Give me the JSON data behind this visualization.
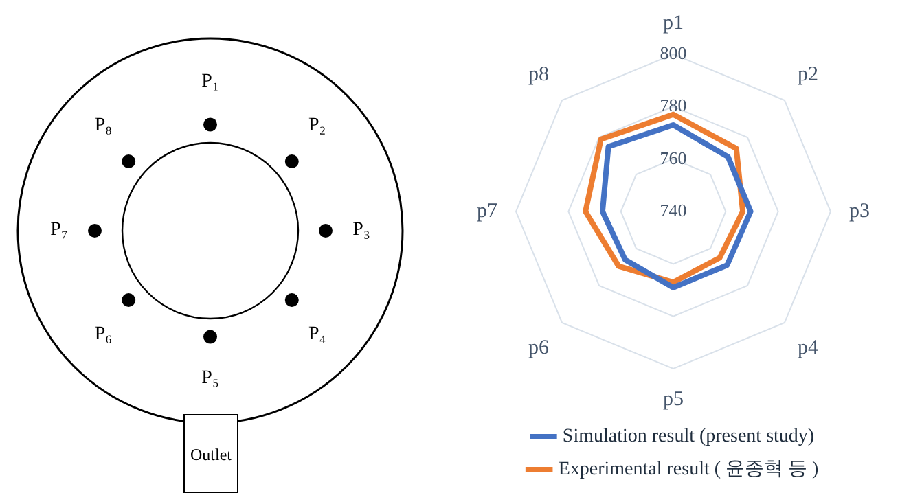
{
  "chart_data": [
    {
      "type": "other",
      "annotations": [
        "P₁",
        "P₂",
        "P₃",
        "P₄",
        "P₅",
        "P₆",
        "P₇",
        "P₈",
        "Outlet"
      ]
    },
    {
      "type": "radar",
      "categories": [
        "p1",
        "p2",
        "p3",
        "p4",
        "p5",
        "p6",
        "p7",
        "p8"
      ],
      "series": [
        {
          "name": "Simulation result (present study)",
          "color": "#4472c4",
          "values": [
            773,
            769.5,
            769.5,
            769,
            769,
            766,
            767,
            775
          ]
        },
        {
          "name": "Experimental result ( 윤종혁 등 )",
          "color": "#ed7d31",
          "values": [
            777,
            774,
            766.5,
            765,
            767,
            769.5,
            773.5,
            779
          ]
        }
      ],
      "ylim": [
        740,
        800
      ],
      "yticks": [
        740,
        760,
        780,
        800
      ],
      "grid": true,
      "legend": "bottom",
      "marker": "none"
    }
  ]
}
